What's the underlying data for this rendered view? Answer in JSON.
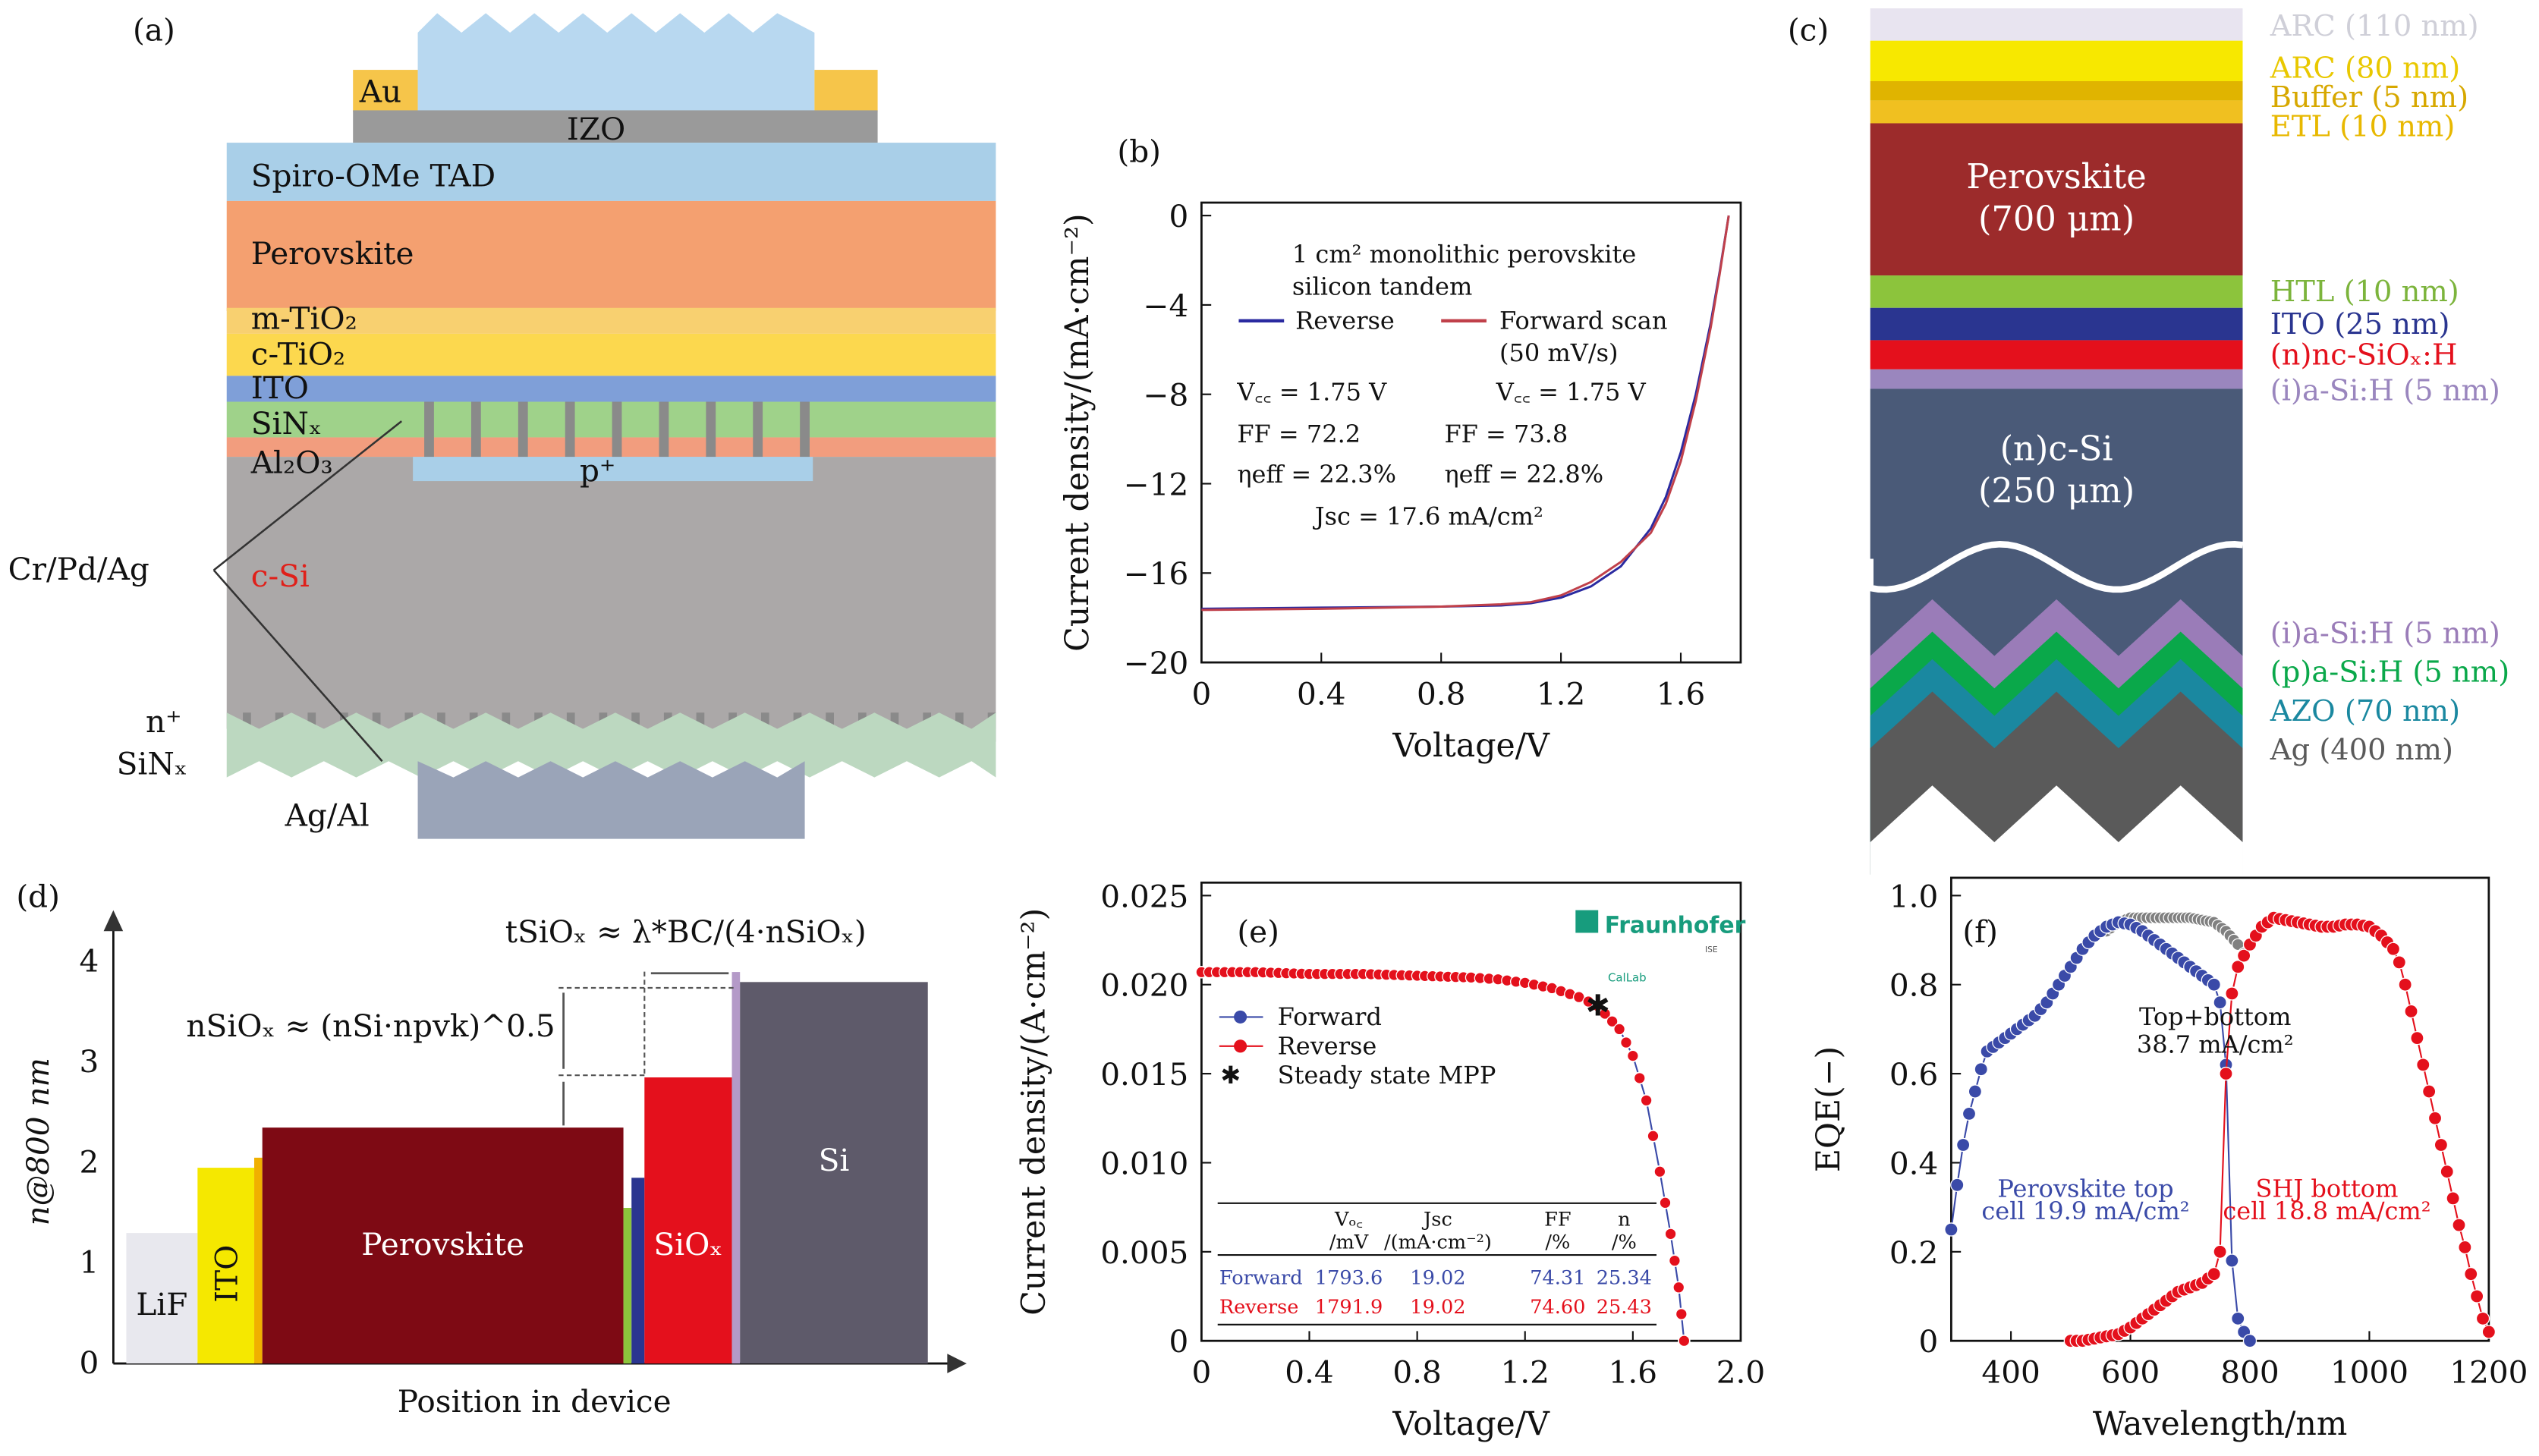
{
  "panel_labels": {
    "a": "(a)",
    "b": "(b)",
    "c": "(c)",
    "d": "(d)",
    "e": "(e)",
    "f": "(f)"
  },
  "panel_a": {
    "layers": [
      "Au",
      "IZO",
      "Spiro-OMe TAD",
      "Perovskite",
      "m-TiO₂",
      "c-TiO₂",
      "ITO",
      "SiNₓ",
      "Al₂O₃",
      "p⁺",
      "c-Si"
    ],
    "contact_top": "Cr/Pd/Ag",
    "n_plus": "n⁺",
    "sinx_bottom": "SiNₓ",
    "contact_bottom": "Ag/Al",
    "colors": {
      "au": "#f6c54a",
      "izo": "#9a9a9a",
      "spiro": "#a9cfe8",
      "perovskite": "#f4a070",
      "tio2": "#fcd84e",
      "ito": "#7f9fd8",
      "sinx": "#9fd28a",
      "al2o3": "#f29d7e",
      "csi": "#aba8a8",
      "pplus": "#a9cfe8",
      "csi_label": "#e0201a"
    }
  },
  "chart_b": {
    "type": "line",
    "xlabel": "Voltage/V",
    "ylabel": "Current density/(mA·cm⁻²)",
    "xlim": [
      0,
      1.8
    ],
    "ylim": [
      -20,
      0
    ],
    "xticks": [
      "0",
      "0.4",
      "0.8",
      "1.2",
      "1.6"
    ],
    "yticks": [
      "0",
      "−4",
      "−8",
      "−12",
      "−16",
      "−20"
    ],
    "title_lines": [
      "1 cm² monolithic perovskite",
      "silicon tandem"
    ],
    "series": [
      {
        "name": "Reverse",
        "color": "#2a2aa0",
        "x": [
          0,
          0.4,
          0.8,
          1.0,
          1.1,
          1.2,
          1.3,
          1.4,
          1.5,
          1.55,
          1.6,
          1.65,
          1.7,
          1.73,
          1.76
        ],
        "y": [
          -17.6,
          -17.55,
          -17.5,
          -17.45,
          -17.35,
          -17.1,
          -16.6,
          -15.7,
          -14.0,
          -12.6,
          -10.6,
          -8.0,
          -4.8,
          -2.5,
          0
        ]
      },
      {
        "name": "Forward scan",
        "name2": "(50 mV/s)",
        "color": "#c0404a",
        "x": [
          0,
          0.4,
          0.8,
          1.0,
          1.1,
          1.2,
          1.3,
          1.4,
          1.5,
          1.55,
          1.6,
          1.65,
          1.7,
          1.73,
          1.76
        ],
        "y": [
          -17.65,
          -17.6,
          -17.5,
          -17.4,
          -17.3,
          -17.0,
          -16.4,
          -15.5,
          -14.2,
          -12.9,
          -11.0,
          -8.3,
          -5.0,
          -2.6,
          0
        ]
      }
    ],
    "annotations": {
      "voc_rev": "V꜀꜀ = 1.75 V",
      "voc_fwd": "V꜀꜀ = 1.75 V",
      "ff_rev": "FF = 72.2",
      "ff_fwd": "FF = 73.8",
      "eff_rev": "ηeff = 22.3%",
      "eff_fwd": "ηeff = 22.8%",
      "jsc": "Jsc = 17.6 mA/cm²"
    }
  },
  "panel_c": {
    "layers": [
      {
        "label": "ARC (110 nm)",
        "color": "#e8e4f0",
        "text": "#cfcfd8"
      },
      {
        "label": "ARC (80 nm)",
        "color": "#f7e800",
        "text": "#e9c800"
      },
      {
        "label": "Buffer (5 nm)",
        "color": "#e0b400",
        "text": "#d7a800"
      },
      {
        "label": "ETL (10 nm)",
        "color": "#f0c020",
        "text": "#e8b800"
      },
      {
        "label": "HTL (10 nm)",
        "color": "#8cc43c",
        "text": "#7cb43c"
      },
      {
        "label": "ITO (25 nm)",
        "color": "#2a3590",
        "text": "#2a3590"
      },
      {
        "label": "(n)nc-SiOₓ:H",
        "color": "#e4101c",
        "text": "#e4101c"
      },
      {
        "label": "(i)a-Si:H (5 nm)",
        "color": "#9a86be",
        "text": "#9a86be"
      },
      {
        "label": "(i)a-Si:H (5 nm)",
        "color": "#9a7cb8",
        "text": "#9a7cb8"
      },
      {
        "label": "(p)a-Si:H (5 nm)",
        "color": "#0aa84a",
        "text": "#0aa84a"
      },
      {
        "label": "AZO (70 nm)",
        "color": "#1a88a0",
        "text": "#1a88a0"
      },
      {
        "label": "Ag (400 nm)",
        "color": "#5a5a5a",
        "text": "#5a5a5a"
      }
    ],
    "perovskite": [
      "Perovskite",
      "(700 μm)"
    ],
    "csi": [
      "(n)c-Si",
      "(250 μm)"
    ],
    "colors": {
      "perovskite": "#9c2b2b",
      "csi": "#4a5a78"
    }
  },
  "panel_d": {
    "ylabel": "n@800 nm",
    "xlabel": "Position in device",
    "yticks": [
      "0",
      "1",
      "2",
      "3",
      "4"
    ],
    "eq1": "tSiOₓ ≈ λ*BC/(4·nSiOₓ)",
    "eq2": "nSiOₓ ≈ (nSi·npvk)^0.5",
    "bars": [
      {
        "label": "LiF",
        "n": 1.3,
        "color": "#e8e8ee"
      },
      {
        "label": "ITO",
        "n": 1.95,
        "color": "#f5e800"
      },
      {
        "label": "",
        "n": 2.05,
        "color": "#f0b000"
      },
      {
        "label": "Perovskite",
        "n": 2.35,
        "color": "#7e0a14"
      },
      {
        "label": "",
        "n": 1.55,
        "color": "#8cc43c"
      },
      {
        "label": "",
        "n": 1.85,
        "color": "#2a3590"
      },
      {
        "label": "SiOₓ",
        "n": 2.85,
        "color": "#e4101c"
      },
      {
        "label": "",
        "n": 3.9,
        "color": "#b49ac8"
      },
      {
        "label": "Si",
        "n": 3.8,
        "color": "#5e5a6a"
      }
    ]
  },
  "chart_e": {
    "type": "scatter",
    "xlabel": "Voltage/V",
    "ylabel": "Current density/(A·cm⁻²)",
    "xlim": [
      0,
      2.0
    ],
    "ylim": [
      0,
      0.025
    ],
    "xticks": [
      "0",
      "0.4",
      "0.8",
      "1.2",
      "1.6",
      "2.0"
    ],
    "yticks": [
      "0",
      "0.005",
      "0.010",
      "0.015",
      "0.020",
      "0.025"
    ],
    "logo": "Fraunhofer",
    "logo_sub": "ISE",
    "logo2": "CalLab",
    "series": [
      {
        "name": "Forward",
        "color": "#3a4aa8",
        "x": [
          0,
          0.2,
          0.4,
          0.6,
          0.8,
          1.0,
          1.1,
          1.2,
          1.3,
          1.4,
          1.47,
          1.55,
          1.6,
          1.65,
          1.7,
          1.74,
          1.77,
          1.79
        ],
        "y": [
          0.0207,
          0.0207,
          0.0206,
          0.0206,
          0.0205,
          0.0204,
          0.0203,
          0.0201,
          0.0198,
          0.0193,
          0.0188,
          0.0175,
          0.016,
          0.0135,
          0.0095,
          0.006,
          0.003,
          0.0
        ]
      },
      {
        "name": "Reverse",
        "color": "#e4101c",
        "x": [
          0,
          0.2,
          0.4,
          0.6,
          0.8,
          1.0,
          1.1,
          1.2,
          1.3,
          1.4,
          1.47,
          1.55,
          1.6,
          1.65,
          1.7,
          1.74,
          1.77,
          1.79
        ],
        "y": [
          0.0207,
          0.0207,
          0.0206,
          0.0206,
          0.0205,
          0.0204,
          0.0203,
          0.0201,
          0.0198,
          0.0193,
          0.0188,
          0.0175,
          0.016,
          0.0135,
          0.0095,
          0.006,
          0.003,
          0.0
        ]
      }
    ],
    "mpp": {
      "name": "Steady state MPP",
      "x": 1.47,
      "y": 0.0188
    },
    "table": {
      "headers": [
        [
          "",
          "",
          ""
        ],
        [
          "Vₒ꜀",
          "/mV"
        ],
        [
          "Jsc",
          "/(mA·cm⁻²)"
        ],
        [
          "FF",
          "/%"
        ],
        [
          "n",
          "/%"
        ]
      ],
      "rows": [
        {
          "label": "Forward",
          "values": [
            "1793.6",
            "19.02",
            "74.31",
            "25.34"
          ],
          "color": "#3a4aa8"
        },
        {
          "label": "Reverse",
          "values": [
            "1791.9",
            "19.02",
            "74.60",
            "25.43"
          ],
          "color": "#e4101c"
        }
      ]
    }
  },
  "chart_f": {
    "type": "scatter",
    "xlabel": "Wavelength/nm",
    "ylabel": "EQE(−)",
    "xlim": [
      300,
      1200
    ],
    "ylim": [
      0,
      1.0
    ],
    "xticks": [
      "400",
      "600",
      "800",
      "1000",
      "1200"
    ],
    "yticks": [
      "0",
      "0.2",
      "0.4",
      "0.6",
      "0.8",
      "1.0"
    ],
    "series": [
      {
        "name": "Top+bottom",
        "label": [
          "Top+bottom",
          "38.7 mA/cm²"
        ],
        "color": "#808080",
        "x": [
          560,
          580,
          600,
          620,
          650,
          680,
          700,
          720,
          740,
          760,
          780,
          790
        ],
        "y": [
          0.92,
          0.94,
          0.95,
          0.95,
          0.95,
          0.95,
          0.95,
          0.945,
          0.94,
          0.92,
          0.89,
          0.87
        ]
      },
      {
        "name": "Perovskite top",
        "label": [
          "Perovskite top",
          "cell 19.9 mA/cm²"
        ],
        "color": "#3a4aa8",
        "x": [
          300,
          310,
          320,
          330,
          340,
          350,
          360,
          370,
          380,
          400,
          420,
          440,
          460,
          480,
          500,
          520,
          540,
          560,
          580,
          600,
          620,
          640,
          660,
          680,
          700,
          720,
          740,
          750,
          760,
          770,
          780,
          790,
          800
        ],
        "y": [
          0.25,
          0.35,
          0.44,
          0.51,
          0.56,
          0.61,
          0.65,
          0.66,
          0.67,
          0.69,
          0.71,
          0.73,
          0.76,
          0.8,
          0.84,
          0.88,
          0.91,
          0.93,
          0.94,
          0.935,
          0.92,
          0.9,
          0.88,
          0.86,
          0.84,
          0.82,
          0.8,
          0.76,
          0.62,
          0.18,
          0.05,
          0.02,
          0.0
        ]
      },
      {
        "name": "SHJ bottom",
        "label": [
          "SHJ bottom",
          "cell 18.8 mA/cm²"
        ],
        "color": "#e4101c",
        "x": [
          500,
          520,
          540,
          560,
          580,
          600,
          620,
          640,
          660,
          680,
          700,
          720,
          740,
          750,
          760,
          770,
          780,
          800,
          820,
          840,
          860,
          880,
          900,
          920,
          940,
          960,
          980,
          1000,
          1020,
          1040,
          1050,
          1060,
          1070,
          1080,
          1090,
          1100,
          1110,
          1120,
          1130,
          1140,
          1150,
          1160,
          1170,
          1180,
          1190,
          1200
        ],
        "y": [
          0,
          0,
          0.005,
          0.01,
          0.015,
          0.03,
          0.05,
          0.07,
          0.09,
          0.11,
          0.12,
          0.13,
          0.15,
          0.2,
          0.6,
          0.78,
          0.84,
          0.89,
          0.93,
          0.95,
          0.945,
          0.94,
          0.935,
          0.93,
          0.93,
          0.935,
          0.935,
          0.93,
          0.91,
          0.88,
          0.85,
          0.8,
          0.74,
          0.68,
          0.62,
          0.56,
          0.5,
          0.44,
          0.38,
          0.32,
          0.26,
          0.21,
          0.15,
          0.1,
          0.05,
          0.02
        ]
      }
    ]
  }
}
